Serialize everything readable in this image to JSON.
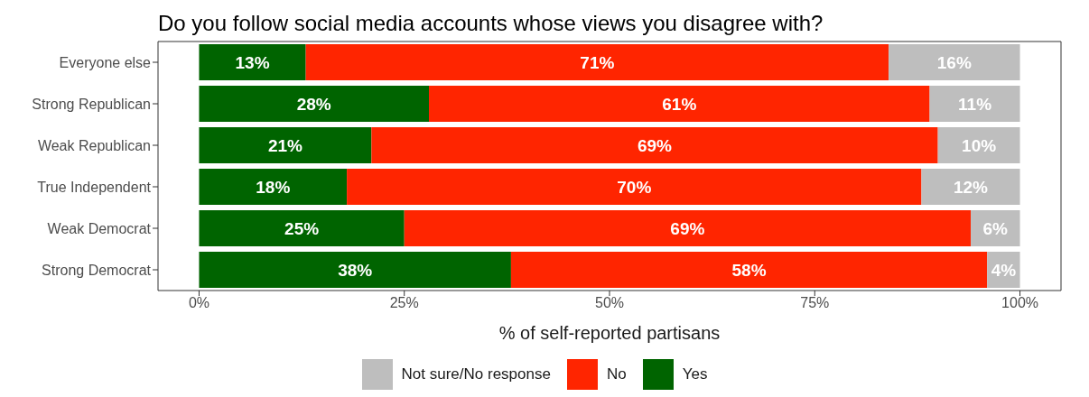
{
  "chart_data": {
    "type": "bar",
    "orientation": "horizontal",
    "stacked": true,
    "title": "Do you follow social media accounts whose views you disagree with?",
    "xlabel": "% of self-reported partisans",
    "categories": [
      "Everyone else",
      "Strong Republican",
      "Weak Republican",
      "True Independent",
      "Weak Democrat",
      "Strong Democrat"
    ],
    "series": [
      {
        "name": "Yes",
        "color": "#006400",
        "values": [
          13,
          28,
          21,
          18,
          25,
          38
        ],
        "value_labels": [
          "13%",
          "28%",
          "21%",
          "18%",
          "25%",
          "38%"
        ]
      },
      {
        "name": "No",
        "color": "#ff2500",
        "values": [
          71,
          61,
          69,
          70,
          69,
          58
        ],
        "value_labels": [
          "71%",
          "61%",
          "69%",
          "70%",
          "69%",
          "58%"
        ]
      },
      {
        "name": "Not sure/No response",
        "color": "#bebebe",
        "values": [
          16,
          11,
          10,
          12,
          6,
          4
        ],
        "value_labels": [
          "16%",
          "11%",
          "10%",
          "12%",
          "6%",
          "4%"
        ]
      }
    ],
    "xlim": [
      -5,
      105
    ],
    "xticks": [
      {
        "value": 0,
        "label": "0%"
      },
      {
        "value": 25,
        "label": "25%"
      },
      {
        "value": 50,
        "label": "50%"
      },
      {
        "value": 75,
        "label": "75%"
      },
      {
        "value": 100,
        "label": "100%"
      }
    ],
    "legend": "bottom"
  }
}
